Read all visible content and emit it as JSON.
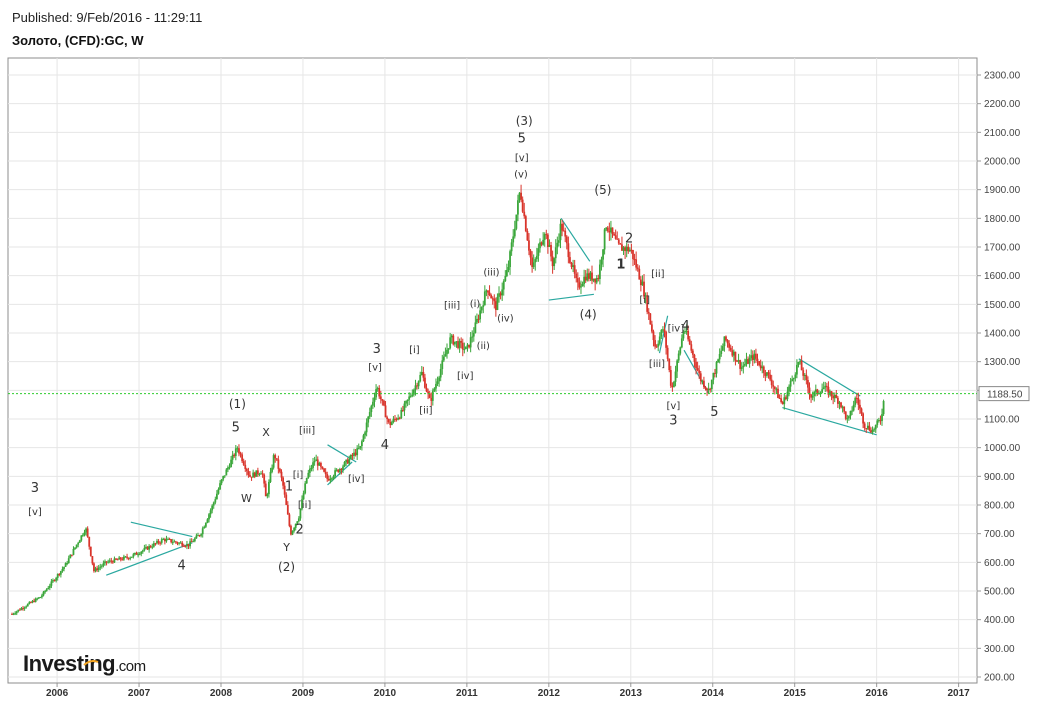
{
  "header": {
    "published": "Published: 9/Feb/2016 - 11:29:11",
    "symbol": "Золото, (CFD):GC, W"
  },
  "logo": {
    "name": "Investing",
    "suffix": ".com"
  },
  "colors": {
    "up_candle": "#3aa63a",
    "down_candle": "#d9342b",
    "trendline": "#2aa8a0",
    "price_line": "#2ecc2e",
    "price_badge_bg": "#ffffff"
  },
  "chart_data": {
    "type": "candlestick",
    "title": "Золото, (CFD):GC, W",
    "xlabel": "",
    "ylabel": "",
    "x_ticks": [
      "2006",
      "2007",
      "2008",
      "2009",
      "2010",
      "2011",
      "2012",
      "2013",
      "2014",
      "2015",
      "2016",
      "2017"
    ],
    "y_ticks": [
      "200.00",
      "300.00",
      "400.00",
      "500.00",
      "600.00",
      "700.00",
      "800.00",
      "900.00",
      "1000.00",
      "1100.00",
      "1200.00",
      "1300.00",
      "1400.00",
      "1500.00",
      "1600.00",
      "1700.00",
      "1800.00",
      "1900.00",
      "2000.00",
      "2100.00",
      "2200.00",
      "2300.00"
    ],
    "ylim": [
      200,
      2330
    ],
    "xlim": [
      2005.45,
      2017.2
    ],
    "grid": true,
    "current_price": 1188.5,
    "current_price_label": "1188.50",
    "price_path": [
      [
        2005.45,
        420
      ],
      [
        2005.8,
        480
      ],
      [
        2006.1,
        590
      ],
      [
        2006.35,
        720
      ],
      [
        2006.45,
        570
      ],
      [
        2006.6,
        600
      ],
      [
        2006.9,
        620
      ],
      [
        2007.1,
        650
      ],
      [
        2007.3,
        680
      ],
      [
        2007.6,
        660
      ],
      [
        2007.75,
        700
      ],
      [
        2007.9,
        800
      ],
      [
        2008.0,
        880
      ],
      [
        2008.2,
        1000
      ],
      [
        2008.35,
        900
      ],
      [
        2008.5,
        920
      ],
      [
        2008.55,
        820
      ],
      [
        2008.65,
        980
      ],
      [
        2008.75,
        880
      ],
      [
        2008.85,
        700
      ],
      [
        2008.95,
        760
      ],
      [
        2009.05,
        900
      ],
      [
        2009.15,
        960
      ],
      [
        2009.3,
        890
      ],
      [
        2009.5,
        940
      ],
      [
        2009.7,
        1000
      ],
      [
        2009.9,
        1215
      ],
      [
        2010.05,
        1080
      ],
      [
        2010.2,
        1120
      ],
      [
        2010.45,
        1260
      ],
      [
        2010.55,
        1160
      ],
      [
        2010.8,
        1380
      ],
      [
        2011.0,
        1340
      ],
      [
        2011.1,
        1420
      ],
      [
        2011.25,
        1560
      ],
      [
        2011.35,
        1490
      ],
      [
        2011.5,
        1620
      ],
      [
        2011.65,
        1900
      ],
      [
        2011.8,
        1620
      ],
      [
        2011.95,
        1760
      ],
      [
        2012.05,
        1640
      ],
      [
        2012.15,
        1780
      ],
      [
        2012.35,
        1560
      ],
      [
        2012.45,
        1600
      ],
      [
        2012.6,
        1590
      ],
      [
        2012.7,
        1780
      ],
      [
        2012.85,
        1700
      ],
      [
        2013.0,
        1690
      ],
      [
        2013.15,
        1560
      ],
      [
        2013.3,
        1350
      ],
      [
        2013.4,
        1420
      ],
      [
        2013.5,
        1200
      ],
      [
        2013.65,
        1420
      ],
      [
        2013.85,
        1240
      ],
      [
        2013.95,
        1200
      ],
      [
        2014.15,
        1380
      ],
      [
        2014.35,
        1280
      ],
      [
        2014.5,
        1320
      ],
      [
        2014.7,
        1240
      ],
      [
        2014.85,
        1150
      ],
      [
        2015.05,
        1300
      ],
      [
        2015.2,
        1180
      ],
      [
        2015.35,
        1210
      ],
      [
        2015.55,
        1160
      ],
      [
        2015.65,
        1090
      ],
      [
        2015.75,
        1180
      ],
      [
        2015.85,
        1080
      ],
      [
        2015.95,
        1060
      ],
      [
        2016.05,
        1100
      ],
      [
        2016.1,
        1188
      ]
    ],
    "trendlines": [
      [
        [
          2006.6,
          555
        ],
        [
          2007.65,
          668
        ]
      ],
      [
        [
          2006.9,
          740
        ],
        [
          2007.65,
          690
        ]
      ],
      [
        [
          2009.3,
          1010
        ],
        [
          2009.65,
          950
        ]
      ],
      [
        [
          2009.3,
          870
        ],
        [
          2009.6,
          950
        ]
      ],
      [
        [
          2012.0,
          1515
        ],
        [
          2012.55,
          1535
        ]
      ],
      [
        [
          2012.15,
          1800
        ],
        [
          2012.5,
          1650
        ]
      ],
      [
        [
          2013.35,
          1330
        ],
        [
          2013.45,
          1460
        ]
      ],
      [
        [
          2013.65,
          1340
        ],
        [
          2013.95,
          1190
        ]
      ],
      [
        [
          2014.85,
          1140
        ],
        [
          2016.0,
          1045
        ]
      ],
      [
        [
          2015.05,
          1310
        ],
        [
          2015.8,
          1180
        ]
      ]
    ],
    "annotations": [
      {
        "text": "3",
        "x": 2005.73,
        "y": 845,
        "size": 13
      },
      {
        "text": "[v]",
        "x": 2005.73,
        "y": 765,
        "size": 10
      },
      {
        "text": "4",
        "x": 2007.52,
        "y": 575,
        "size": 13
      },
      {
        "text": "(1)",
        "x": 2008.2,
        "y": 1138,
        "size": 12
      },
      {
        "text": "5",
        "x": 2008.18,
        "y": 1057,
        "size": 13
      },
      {
        "text": "X",
        "x": 2008.55,
        "y": 1040,
        "size": 11
      },
      {
        "text": "W",
        "x": 2008.31,
        "y": 810,
        "size": 11
      },
      {
        "text": "[iii]",
        "x": 2009.05,
        "y": 1050,
        "size": 10
      },
      {
        "text": "[i]",
        "x": 2008.94,
        "y": 895,
        "size": 10
      },
      {
        "text": "1",
        "x": 2008.83,
        "y": 850,
        "size": 13
      },
      {
        "text": "[ii]",
        "x": 2009.02,
        "y": 790,
        "size": 10
      },
      {
        "text": "2",
        "x": 2008.96,
        "y": 700,
        "size": 13
      },
      {
        "text": "Y",
        "x": 2008.8,
        "y": 640,
        "size": 11
      },
      {
        "text": "(2)",
        "x": 2008.8,
        "y": 570,
        "size": 12
      },
      {
        "text": "[iv]",
        "x": 2009.65,
        "y": 880,
        "size": 10
      },
      {
        "text": "3",
        "x": 2009.9,
        "y": 1330,
        "size": 13
      },
      {
        "text": "[v]",
        "x": 2009.88,
        "y": 1270,
        "size": 10
      },
      {
        "text": "4",
        "x": 2010.0,
        "y": 995,
        "size": 13
      },
      {
        "text": "[i]",
        "x": 2010.36,
        "y": 1330,
        "size": 10
      },
      {
        "text": "[ii]",
        "x": 2010.5,
        "y": 1120,
        "size": 10
      },
      {
        "text": "[iii]",
        "x": 2010.82,
        "y": 1485,
        "size": 10
      },
      {
        "text": "[iv]",
        "x": 2010.98,
        "y": 1240,
        "size": 10
      },
      {
        "text": "(i)",
        "x": 2011.1,
        "y": 1490,
        "size": 10
      },
      {
        "text": "(ii)",
        "x": 2011.2,
        "y": 1345,
        "size": 10
      },
      {
        "text": "(iii)",
        "x": 2011.3,
        "y": 1600,
        "size": 10
      },
      {
        "text": "(iv)",
        "x": 2011.47,
        "y": 1440,
        "size": 10
      },
      {
        "text": "(3)",
        "x": 2011.7,
        "y": 2125,
        "size": 12
      },
      {
        "text": "5",
        "x": 2011.67,
        "y": 2065,
        "size": 13
      },
      {
        "text": "[v]",
        "x": 2011.67,
        "y": 2000,
        "size": 10
      },
      {
        "text": "(v)",
        "x": 2011.66,
        "y": 1942,
        "size": 10
      },
      {
        "text": "(4)",
        "x": 2012.48,
        "y": 1450,
        "size": 12
      },
      {
        "text": "(5)",
        "x": 2012.66,
        "y": 1885,
        "size": 12
      },
      {
        "text": "2",
        "x": 2012.98,
        "y": 1715,
        "size": 13
      },
      {
        "text": "1",
        "x": 2012.88,
        "y": 1625,
        "size": 13,
        "bold": true
      },
      {
        "text": "[ii]",
        "x": 2013.33,
        "y": 1595,
        "size": 10
      },
      {
        "text": "[i]",
        "x": 2013.17,
        "y": 1505,
        "size": 10
      },
      {
        "text": "[iv]",
        "x": 2013.55,
        "y": 1405,
        "size": 10
      },
      {
        "text": "4",
        "x": 2013.67,
        "y": 1410,
        "size": 13
      },
      {
        "text": "[iii]",
        "x": 2013.32,
        "y": 1282,
        "size": 10
      },
      {
        "text": "[v]",
        "x": 2013.52,
        "y": 1135,
        "size": 10
      },
      {
        "text": "3",
        "x": 2013.52,
        "y": 1080,
        "size": 13
      },
      {
        "text": "5",
        "x": 2014.02,
        "y": 1110,
        "size": 13
      }
    ]
  }
}
